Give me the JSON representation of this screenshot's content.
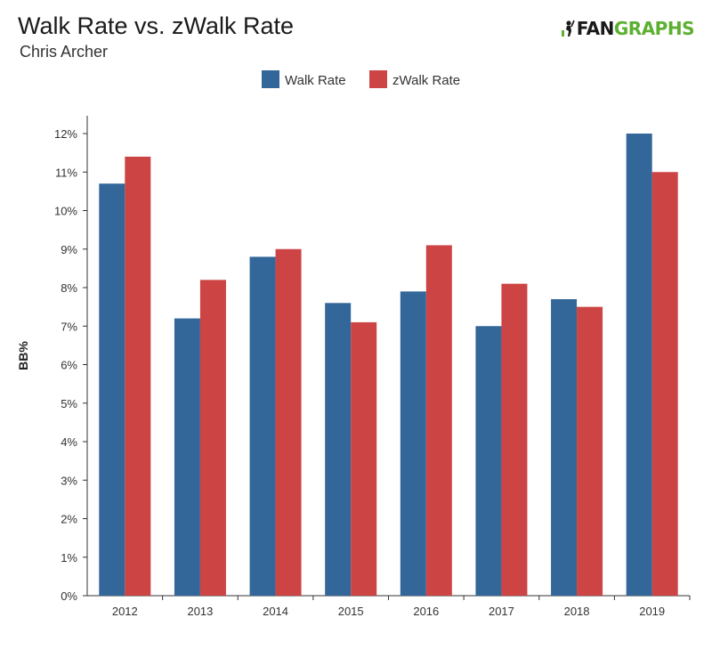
{
  "header": {
    "title": "Walk Rate vs. zWalk Rate",
    "subtitle": "Chris Archer"
  },
  "logo": {
    "part1": "FAN",
    "part2": "GRAPHS",
    "icon": "batter-silhouette-icon",
    "colors": {
      "dark": "#1a1a1a",
      "green": "#5cb031"
    }
  },
  "chart_data": {
    "type": "bar",
    "categories": [
      "2012",
      "2013",
      "2014",
      "2015",
      "2016",
      "2017",
      "2018",
      "2019"
    ],
    "series": [
      {
        "name": "Walk Rate",
        "color": "#336699",
        "values": [
          10.7,
          7.2,
          8.8,
          7.6,
          7.9,
          7.0,
          7.7,
          12.0
        ]
      },
      {
        "name": "zWalk Rate",
        "color": "#cc4444",
        "values": [
          11.4,
          8.2,
          9.0,
          7.1,
          9.1,
          8.1,
          7.5,
          11.0
        ]
      }
    ],
    "ylabel": "BB%",
    "xlabel": "",
    "ylim": [
      0,
      12
    ],
    "yticks": [
      "0%",
      "1%",
      "2%",
      "3%",
      "4%",
      "5%",
      "6%",
      "7%",
      "8%",
      "9%",
      "10%",
      "11%",
      "12%"
    ],
    "legend": "top-center",
    "grid": false
  }
}
